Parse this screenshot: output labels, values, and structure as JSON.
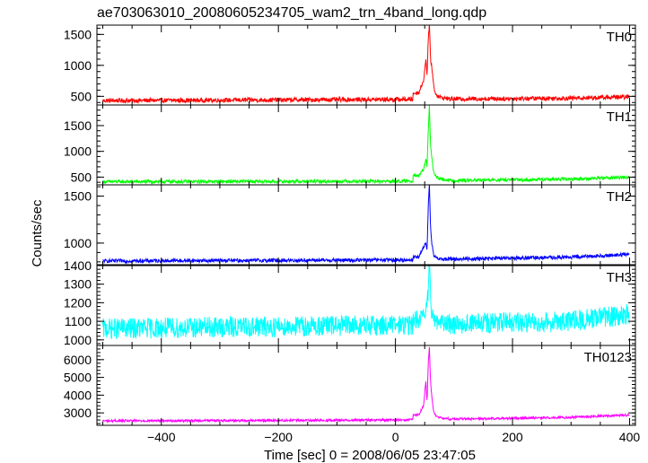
{
  "chart_data": {
    "type": "line",
    "title": "ae703063010_20080605234705_wam2_trn_4band_long.qdp",
    "xlabel": "Time [sec] 0 = 2008/06/05 23:47:05",
    "ylabel": "Counts/sec",
    "xlim": [
      -510,
      410
    ],
    "xticks": [
      -400,
      -200,
      0,
      200,
      400
    ],
    "panels": [
      {
        "name": "TH0",
        "color": "#ff0000",
        "ylim": [
          360,
          1650
        ],
        "yticks": [
          500,
          1000,
          1500
        ],
        "baseline": [
          [
            -500,
            430
          ],
          [
            0,
            450
          ],
          [
            300,
            470
          ],
          [
            400,
            490
          ]
        ],
        "noise": 45,
        "x": [
          -500,
          -100,
          0,
          40,
          48,
          52,
          54,
          56,
          58,
          60,
          62,
          64,
          66,
          70,
          80,
          300,
          400
        ],
        "y": [
          430,
          435,
          510,
          560,
          760,
          1090,
          850,
          1430,
          1650,
          1100,
          980,
          800,
          620,
          520,
          470,
          470,
          490
        ]
      },
      {
        "name": "TH1",
        "color": "#00ff00",
        "ylim": [
          350,
          1900
        ],
        "yticks": [
          500,
          1000,
          1500
        ],
        "baseline": [
          [
            -500,
            410
          ],
          [
            0,
            420
          ],
          [
            300,
            460
          ],
          [
            400,
            500
          ]
        ],
        "noise": 40,
        "x": [
          -500,
          -100,
          0,
          40,
          48,
          52,
          54,
          56,
          58,
          60,
          62,
          64,
          66,
          70,
          80,
          300,
          400
        ],
        "y": [
          410,
          410,
          640,
          520,
          650,
          850,
          700,
          1400,
          1880,
          1100,
          900,
          700,
          560,
          500,
          450,
          460,
          500
        ]
      },
      {
        "name": "TH2",
        "color": "#0000ff",
        "ylim": [
          770,
          1620
        ],
        "yticks": [
          1000,
          1500
        ],
        "baseline": [
          [
            -500,
            810
          ],
          [
            0,
            820
          ],
          [
            300,
            850
          ],
          [
            400,
            880
          ]
        ],
        "noise": 25,
        "x": [
          -500,
          -100,
          0,
          40,
          48,
          52,
          54,
          56,
          58,
          60,
          62,
          64,
          66,
          70,
          80,
          300,
          400
        ],
        "y": [
          810,
          810,
          870,
          850,
          960,
          1000,
          930,
          1400,
          1620,
          1150,
          1000,
          920,
          860,
          840,
          830,
          850,
          880
        ]
      },
      {
        "name": "TH3",
        "color": "#00ffff",
        "ylim": [
          970,
          1400
        ],
        "yticks": [
          1000,
          1100,
          1200,
          1300,
          1400
        ],
        "baseline": [
          [
            -500,
            1060
          ],
          [
            0,
            1080
          ],
          [
            300,
            1100
          ],
          [
            400,
            1140
          ]
        ],
        "noise": 70,
        "x": [
          -500,
          -100,
          0,
          50,
          56,
          58,
          60,
          62,
          70,
          80,
          300,
          400
        ],
        "y": [
          1060,
          1070,
          1080,
          1120,
          1250,
          1400,
          1220,
          1150,
          1100,
          1090,
          1100,
          1140
        ]
      },
      {
        "name": "TH0123",
        "color": "#ff00ff",
        "ylim": [
          2300,
          6800
        ],
        "yticks": [
          3000,
          4000,
          5000,
          6000
        ],
        "baseline": [
          [
            -500,
            2550
          ],
          [
            0,
            2600
          ],
          [
            300,
            2750
          ],
          [
            400,
            2880
          ]
        ],
        "noise": 80,
        "x": [
          -500,
          -100,
          0,
          40,
          48,
          52,
          54,
          56,
          58,
          60,
          62,
          64,
          66,
          70,
          80,
          300,
          400
        ],
        "y": [
          2550,
          2560,
          2800,
          2900,
          3400,
          4800,
          3600,
          5800,
          6700,
          4700,
          4000,
          3400,
          3000,
          2800,
          2700,
          2750,
          2880
        ]
      }
    ]
  }
}
